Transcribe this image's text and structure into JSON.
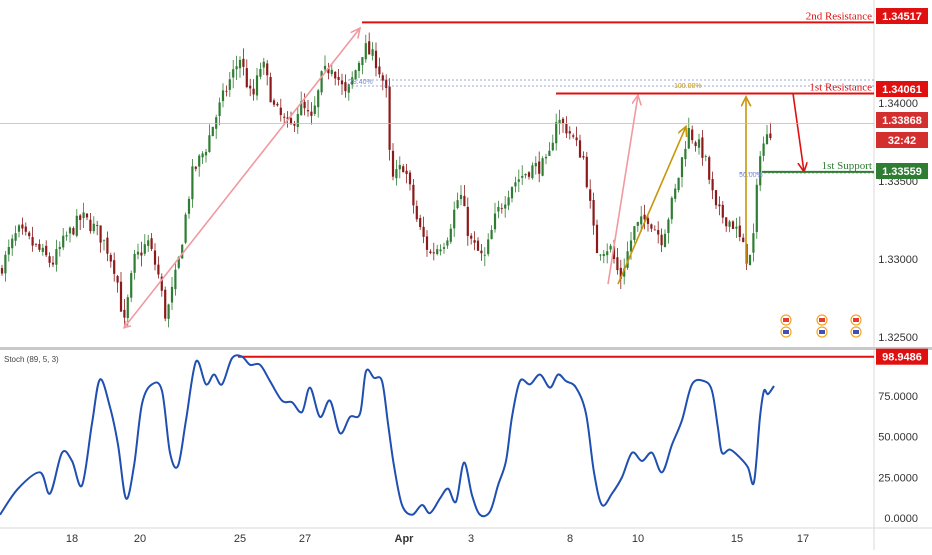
{
  "chart_data": [
    {
      "type": "candlestick",
      "colors": {
        "up": "#2e7d32",
        "down": "#8b1a1a",
        "wick": "#555555"
      },
      "ylim": [
        1.3245,
        1.3466
      ],
      "y_ticks": [
        "1.34000",
        "1.33500",
        "1.33000",
        "1.32500"
      ],
      "x_ticks": [
        "18",
        "20",
        "25",
        "27",
        "Apr",
        "3",
        "8",
        "10",
        "15",
        "17"
      ],
      "price_path": [
        [
          0,
          1.3293
        ],
        [
          18,
          1.3318
        ],
        [
          40,
          1.3305
        ],
        [
          52,
          1.3297
        ],
        [
          66,
          1.3314
        ],
        [
          82,
          1.3327
        ],
        [
          96,
          1.3319
        ],
        [
          106,
          1.3309
        ],
        [
          116,
          1.3292
        ],
        [
          124,
          1.3257
        ],
        [
          134,
          1.3299
        ],
        [
          148,
          1.3311
        ],
        [
          158,
          1.3291
        ],
        [
          166,
          1.3262
        ],
        [
          178,
          1.3296
        ],
        [
          192,
          1.3354
        ],
        [
          206,
          1.3372
        ],
        [
          214,
          1.3388
        ],
        [
          228,
          1.3412
        ],
        [
          240,
          1.3429
        ],
        [
          252,
          1.3401
        ],
        [
          262,
          1.3427
        ],
        [
          274,
          1.3397
        ],
        [
          290,
          1.3383
        ],
        [
          300,
          1.3399
        ],
        [
          312,
          1.3388
        ],
        [
          322,
          1.3417
        ],
        [
          332,
          1.3425
        ],
        [
          346,
          1.3404
        ],
        [
          364,
          1.3436
        ],
        [
          376,
          1.3427
        ],
        [
          386,
          1.3409
        ],
        [
          388,
          1.3378
        ],
        [
          392,
          1.335
        ],
        [
          404,
          1.3361
        ],
        [
          418,
          1.3322
        ],
        [
          430,
          1.3303
        ],
        [
          446,
          1.3313
        ],
        [
          460,
          1.3343
        ],
        [
          470,
          1.3312
        ],
        [
          484,
          1.3299
        ],
        [
          496,
          1.3328
        ],
        [
          512,
          1.3348
        ],
        [
          530,
          1.3358
        ],
        [
          548,
          1.3361
        ],
        [
          556,
          1.339
        ],
        [
          568,
          1.3383
        ],
        [
          584,
          1.3364
        ],
        [
          596,
          1.3306
        ],
        [
          610,
          1.3308
        ],
        [
          620,
          1.3287
        ],
        [
          634,
          1.3319
        ],
        [
          648,
          1.3327
        ],
        [
          662,
          1.3313
        ],
        [
          676,
          1.3345
        ],
        [
          688,
          1.3383
        ],
        [
          704,
          1.3367
        ],
        [
          716,
          1.3331
        ],
        [
          734,
          1.3322
        ],
        [
          748,
          1.3299
        ],
        [
          752,
          1.3303
        ],
        [
          760,
          1.337
        ],
        [
          770,
          1.3381
        ],
        [
          772,
          1.33868
        ]
      ],
      "horizontal_lines": [
        {
          "label": "2nd Resistance",
          "price_label": "1.34517",
          "price": 1.34517,
          "color": "#e01010",
          "x_start": 362
        },
        {
          "label": "1st Resistance",
          "price_label": "1.34061",
          "price": 1.34061,
          "color": "#e01010",
          "x_start": 556
        },
        {
          "label": "1st Support",
          "price_label": "1.33559",
          "price": 1.33559,
          "color": "#2e7d32",
          "x_start": 762
        }
      ],
      "current_price": {
        "label": "1.33868",
        "price": 1.33868,
        "color": "#d32f2f",
        "countdown": "32:42"
      },
      "fib_labels": [
        "78.40%",
        "100.00%",
        "50.00%"
      ],
      "annotations": [
        {
          "kind": "arrow",
          "color": "#f09aa0",
          "from": [
            124,
            1.3256
          ],
          "to": [
            360,
            1.3448
          ]
        },
        {
          "kind": "arrow",
          "color": "#f09aa0",
          "from": [
            608,
            1.3284
          ],
          "to": [
            638,
            1.3405
          ]
        },
        {
          "kind": "arrow",
          "color": "#c8960c",
          "from": [
            618,
            1.3284
          ],
          "to": [
            686,
            1.3385
          ]
        },
        {
          "kind": "arrow",
          "color": "#c8960c",
          "from": [
            746,
            1.3297
          ],
          "to": [
            746,
            1.3404
          ]
        },
        {
          "kind": "line",
          "color": "#e01010",
          "from": [
            793,
            1.34061
          ],
          "to": [
            804,
            1.33559
          ]
        }
      ]
    },
    {
      "type": "line",
      "title": "Stoch (89, 5, 3)",
      "color": "#1f4fb0",
      "ylim": [
        0,
        100
      ],
      "y_ticks": [
        "75.0000",
        "50.0000",
        "25.0000",
        "0.0000"
      ],
      "level": {
        "label": "98.9486",
        "value": 98.9486,
        "color": "#e01010",
        "x_start": 238
      },
      "current_label": "",
      "values": [
        [
          0,
          2
        ],
        [
          18,
          18
        ],
        [
          40,
          28
        ],
        [
          50,
          15
        ],
        [
          62,
          40
        ],
        [
          72,
          35
        ],
        [
          82,
          20
        ],
        [
          92,
          58
        ],
        [
          100,
          85
        ],
        [
          110,
          68
        ],
        [
          118,
          45
        ],
        [
          126,
          12
        ],
        [
          134,
          32
        ],
        [
          142,
          70
        ],
        [
          152,
          82
        ],
        [
          162,
          78
        ],
        [
          170,
          40
        ],
        [
          178,
          32
        ],
        [
          186,
          60
        ],
        [
          196,
          96
        ],
        [
          206,
          82
        ],
        [
          214,
          88
        ],
        [
          222,
          82
        ],
        [
          232,
          98
        ],
        [
          242,
          99
        ],
        [
          250,
          94
        ],
        [
          260,
          94
        ],
        [
          270,
          84
        ],
        [
          282,
          72
        ],
        [
          292,
          71
        ],
        [
          302,
          65
        ],
        [
          310,
          80
        ],
        [
          320,
          62
        ],
        [
          330,
          72
        ],
        [
          340,
          52
        ],
        [
          350,
          62
        ],
        [
          360,
          64
        ],
        [
          366,
          90
        ],
        [
          374,
          86
        ],
        [
          382,
          84
        ],
        [
          388,
          58
        ],
        [
          394,
          32
        ],
        [
          402,
          8
        ],
        [
          412,
          2
        ],
        [
          422,
          8
        ],
        [
          430,
          3
        ],
        [
          440,
          12
        ],
        [
          448,
          18
        ],
        [
          456,
          10
        ],
        [
          464,
          34
        ],
        [
          472,
          14
        ],
        [
          480,
          2
        ],
        [
          490,
          4
        ],
        [
          498,
          20
        ],
        [
          506,
          35
        ],
        [
          512,
          62
        ],
        [
          520,
          84
        ],
        [
          530,
          82
        ],
        [
          540,
          88
        ],
        [
          550,
          80
        ],
        [
          558,
          88
        ],
        [
          566,
          84
        ],
        [
          576,
          80
        ],
        [
          586,
          64
        ],
        [
          594,
          28
        ],
        [
          602,
          8
        ],
        [
          612,
          15
        ],
        [
          622,
          25
        ],
        [
          632,
          40
        ],
        [
          642,
          35
        ],
        [
          652,
          40
        ],
        [
          662,
          28
        ],
        [
          672,
          45
        ],
        [
          682,
          60
        ],
        [
          692,
          82
        ],
        [
          704,
          84
        ],
        [
          712,
          78
        ],
        [
          718,
          55
        ],
        [
          722,
          40
        ],
        [
          730,
          42
        ],
        [
          740,
          37
        ],
        [
          748,
          31
        ],
        [
          754,
          22
        ],
        [
          760,
          62
        ],
        [
          764,
          78
        ],
        [
          768,
          76
        ],
        [
          774,
          81
        ]
      ]
    }
  ],
  "pane_separator": "#c9c9c9"
}
